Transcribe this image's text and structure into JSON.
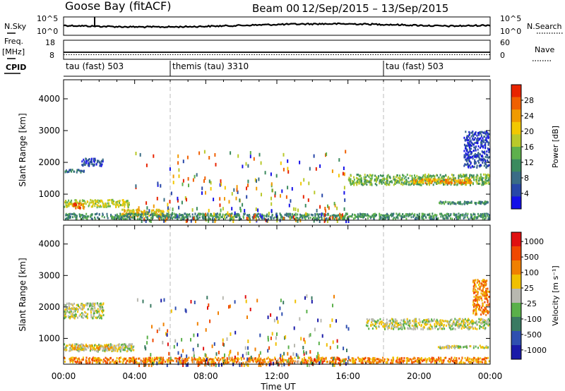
{
  "header": {
    "title": "Goose Bay (fitACF)",
    "beam": "Beam 00",
    "date_range": "12/Sep/2015 – 13/Sep/2015"
  },
  "strip_labels": {
    "nsky": "N.Sky",
    "nsearch": "N.Search",
    "freq": "Freq.",
    "mhz": "[MHz]",
    "nave": "Nave",
    "cpid": "CPID",
    "nsky_ticks": [
      "10^5",
      "10^0"
    ],
    "nsearch_ticks": [
      "10^5",
      "10^0"
    ],
    "freq_ticks": [
      "18",
      "8"
    ],
    "nave_ticks": [
      "60",
      "0"
    ]
  },
  "cpid_segments": [
    {
      "label": "tau (fast) 503",
      "start_hour": 0
    },
    {
      "label": "themis (tau) 3310",
      "start_hour": 6
    },
    {
      "label": "tau (fast) 503",
      "start_hour": 18
    }
  ],
  "x_axis": {
    "label": "Time UT",
    "ticks": [
      "00:00",
      "04:00",
      "08:00",
      "12:00",
      "16:00",
      "20:00",
      "00:00"
    ],
    "range_hours": [
      0,
      24
    ]
  },
  "chart_data": [
    {
      "type": "heatmap",
      "title": "",
      "ylabel": "Slant Range [km]",
      "yticks": [
        1000,
        2000,
        3000,
        4000
      ],
      "ylim": [
        180,
        4600
      ],
      "colorbar": {
        "label": "Power [dB]",
        "ticks": [
          "4",
          "8",
          "12",
          "16",
          "20",
          "24",
          "28"
        ],
        "colors": [
          "#1410e8",
          "#2847a8",
          "#3a6c86",
          "#3b8a5e",
          "#5eb04c",
          "#b9c92a",
          "#f2c800",
          "#f09a00",
          "#f06000",
          "#e82400"
        ]
      },
      "regions": [
        {
          "t0": 0.0,
          "t1": 1.2,
          "r0": 1650,
          "r1": 1800,
          "level": 2
        },
        {
          "t0": 1.0,
          "t1": 2.3,
          "r0": 1850,
          "r1": 2150,
          "level": 1
        },
        {
          "t0": 0.0,
          "t1": 3.8,
          "r0": 550,
          "r1": 850,
          "level": 5
        },
        {
          "t0": 0.5,
          "t1": 1.2,
          "r0": 500,
          "r1": 750,
          "level": 8
        },
        {
          "t0": 3.2,
          "t1": 6.0,
          "r0": 250,
          "r1": 550,
          "level": 6
        },
        {
          "t0": 16.0,
          "t1": 24.0,
          "r0": 1250,
          "r1": 1650,
          "level": 4
        },
        {
          "t0": 19.5,
          "t1": 23.0,
          "r0": 1300,
          "r1": 1500,
          "level": 7
        },
        {
          "t0": 21.0,
          "t1": 24.0,
          "r0": 650,
          "r1": 800,
          "level": 3
        },
        {
          "t0": 22.5,
          "t1": 24.0,
          "r0": 1800,
          "r1": 3000,
          "level": 1
        },
        {
          "t0": 0.0,
          "t1": 24.0,
          "r0": 180,
          "r1": 420,
          "level": 3
        }
      ],
      "scatter_density": [
        {
          "t0": 4.0,
          "t1": 16.0,
          "r0": 200,
          "r1": 2400,
          "count": 260
        }
      ]
    },
    {
      "type": "heatmap",
      "title": "",
      "ylabel": "Slant Range [km]",
      "yticks": [
        1000,
        2000,
        3000,
        4000
      ],
      "ylim": [
        180,
        4600
      ],
      "colorbar": {
        "label": "Velocity [m s⁻¹]",
        "ticks": [
          "1000",
          "500",
          "100",
          "25",
          "-25",
          "-100",
          "-500",
          "-1000"
        ],
        "colors": [
          "#1a1aa8",
          "#2f4fb0",
          "#3a7a62",
          "#5ab04a",
          "#b8b8b0",
          "#f0c000",
          "#f08000",
          "#f04800",
          "#e01010"
        ]
      },
      "regions": [
        {
          "t0": 0.0,
          "t1": 2.3,
          "r0": 1600,
          "r1": 2150,
          "level": 4
        },
        {
          "t0": 0.0,
          "t1": 4.0,
          "r0": 550,
          "r1": 850,
          "level": 4
        },
        {
          "t0": 0.3,
          "t1": 3.0,
          "r0": 600,
          "r1": 800,
          "level": 5
        },
        {
          "t0": 17.0,
          "t1": 24.0,
          "r0": 1250,
          "r1": 1650,
          "level": 4
        },
        {
          "t0": 21.0,
          "t1": 24.0,
          "r0": 650,
          "r1": 800,
          "level": 4
        },
        {
          "t0": 23.0,
          "t1": 24.0,
          "r0": 1700,
          "r1": 2900,
          "level": 6
        },
        {
          "t0": 0.0,
          "t1": 24.0,
          "r0": 180,
          "r1": 420,
          "level": 6
        }
      ],
      "scatter_density": [
        {
          "t0": 4.0,
          "t1": 16.0,
          "r0": 200,
          "r1": 2400,
          "count": 260
        }
      ]
    }
  ]
}
